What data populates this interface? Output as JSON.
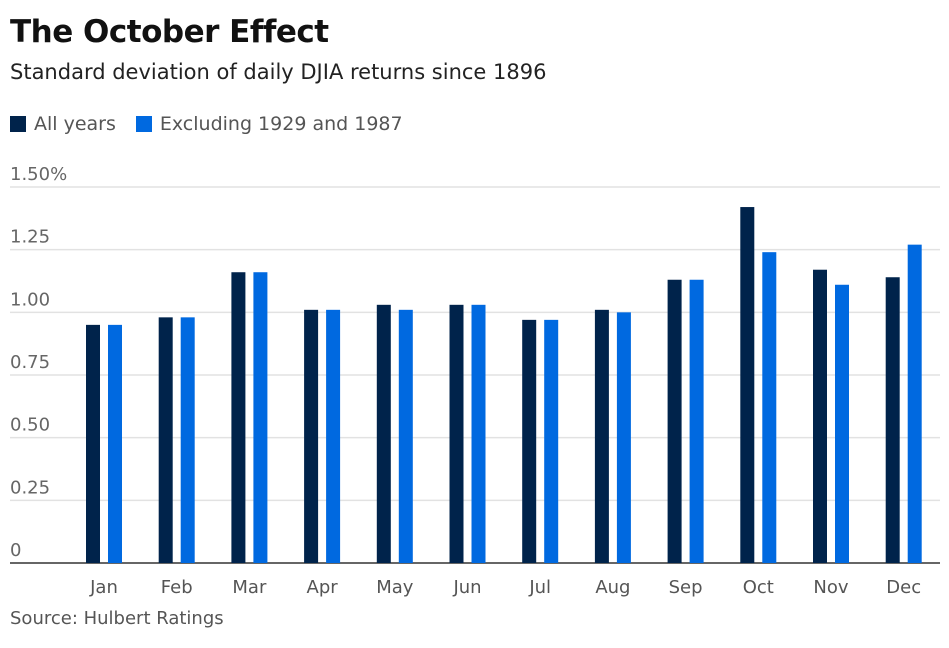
{
  "chart_data": {
    "type": "bar",
    "title": "The October Effect",
    "subtitle": "Standard deviation of daily DJIA returns since 1896",
    "source": "Source: Hulbert Ratings",
    "categories": [
      "Jan",
      "Feb",
      "Mar",
      "Apr",
      "May",
      "Jun",
      "Jul",
      "Aug",
      "Sep",
      "Oct",
      "Nov",
      "Dec"
    ],
    "series": [
      {
        "name": "All years",
        "color": "#00234b",
        "values": [
          0.95,
          0.98,
          1.16,
          1.01,
          1.03,
          1.03,
          0.97,
          1.01,
          1.13,
          1.42,
          1.17,
          1.14
        ]
      },
      {
        "name": "Excluding 1929 and 1987",
        "color": "#0069e0",
        "values": [
          0.95,
          0.98,
          1.16,
          1.01,
          1.01,
          1.03,
          0.97,
          1.0,
          1.13,
          1.24,
          1.11,
          1.27
        ]
      }
    ],
    "yticks": [
      {
        "value": 0,
        "label": "0"
      },
      {
        "value": 0.25,
        "label": "0.25"
      },
      {
        "value": 0.5,
        "label": "0.50"
      },
      {
        "value": 0.75,
        "label": "0.75"
      },
      {
        "value": 1.0,
        "label": "1.00"
      },
      {
        "value": 1.25,
        "label": "1.25"
      },
      {
        "value": 1.5,
        "label": "1.50%"
      }
    ],
    "ylim": [
      0,
      1.5
    ],
    "grid": true,
    "legend_position": "top-left"
  }
}
